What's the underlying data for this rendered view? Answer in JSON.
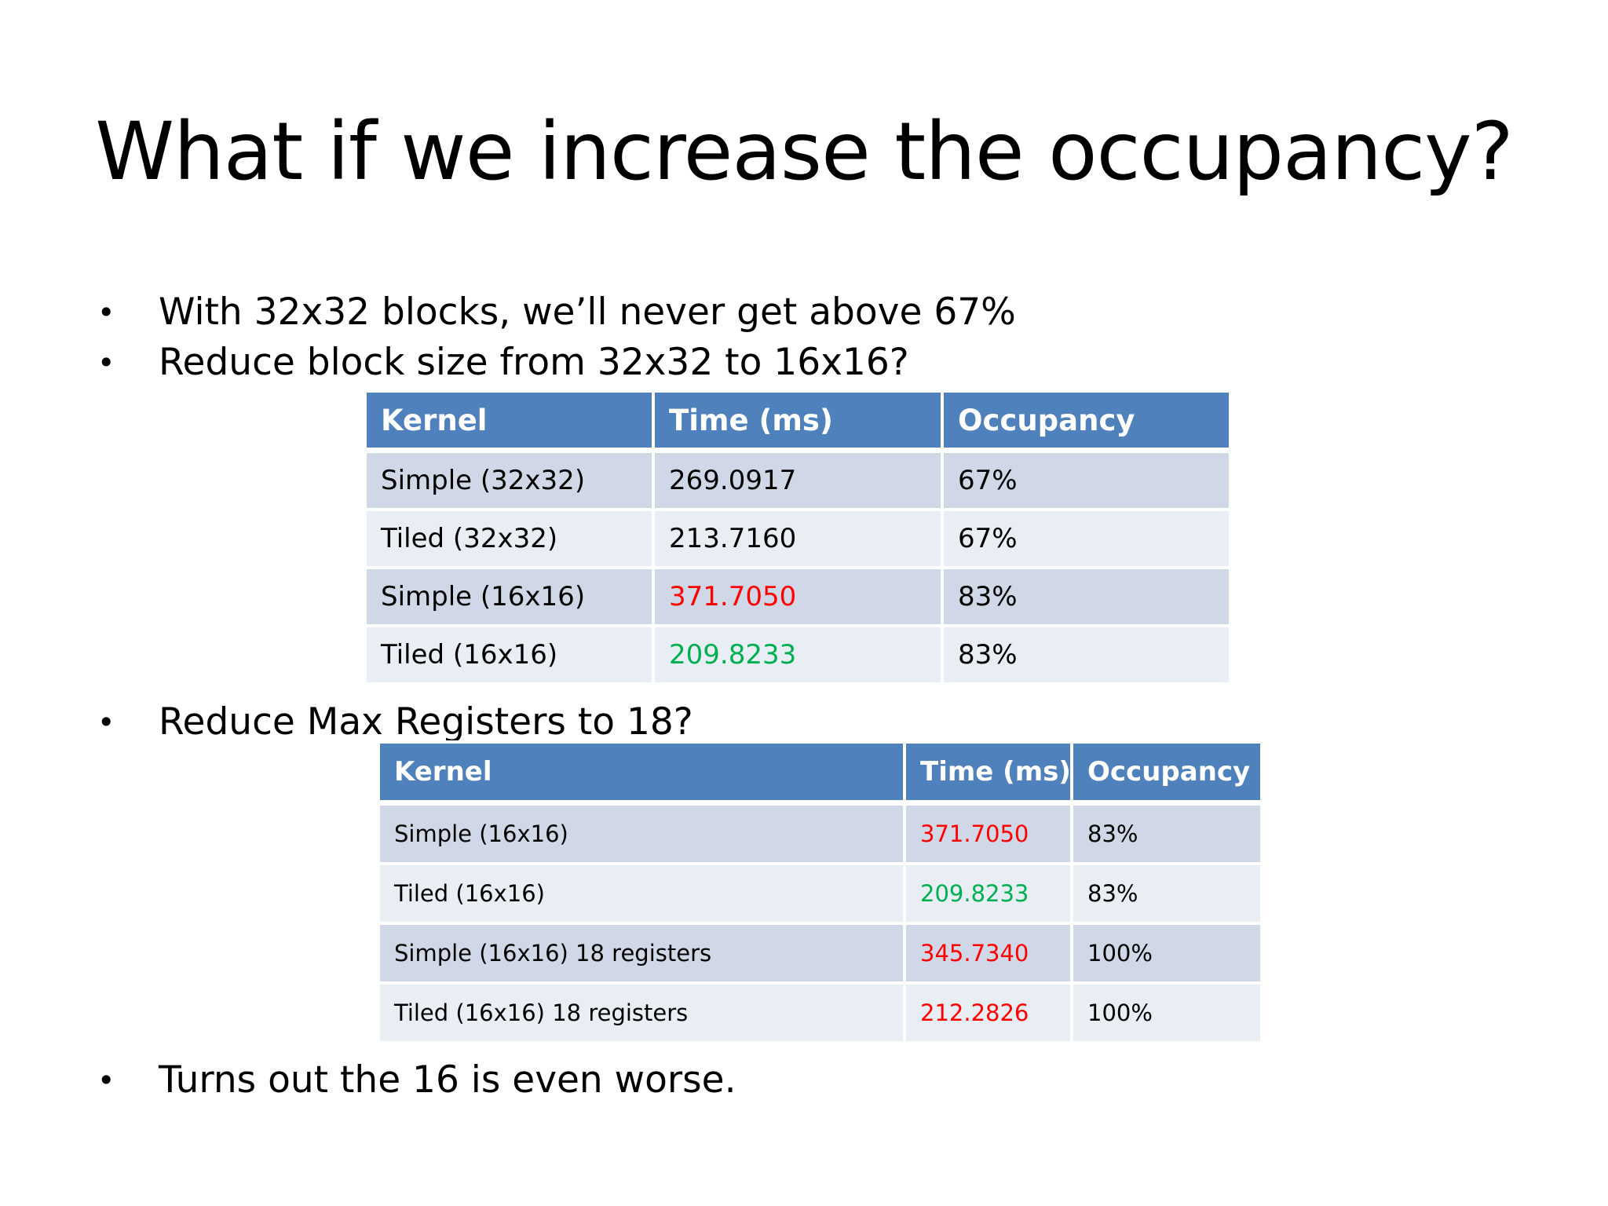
{
  "slide": {
    "title": "What if we increase the occupancy?",
    "bullets": [
      "With 32x32 blocks, we’ll never get above 67%",
      "Reduce block size from 32x32 to 16x16?",
      "Reduce Max Registers to 18?",
      "Turns out the 16 is even worse."
    ],
    "bullet_symbol": "•"
  },
  "colors": {
    "header_bg": "#4f81bd",
    "row_odd_bg": "#d0d8e8",
    "row_even_bg": "#e9edf4",
    "worse_value": "#ff0000",
    "better_value": "#00b050"
  },
  "table1": {
    "headers": [
      "Kernel",
      "Time (ms)",
      "Occupancy"
    ],
    "rows": [
      {
        "kernel": "Simple (32x32)",
        "time": "269.0917",
        "occupancy": "67%",
        "highlight": ""
      },
      {
        "kernel": "Tiled (32x32)",
        "time": "213.7160",
        "occupancy": "67%",
        "highlight": ""
      },
      {
        "kernel": "Simple (16x16)",
        "time": "371.7050",
        "occupancy": "83%",
        "highlight": "red"
      },
      {
        "kernel": "Tiled (16x16)",
        "time": "209.8233",
        "occupancy": "83%",
        "highlight": "green"
      }
    ]
  },
  "table2": {
    "headers": [
      "Kernel",
      "Time (ms)",
      "Occupancy"
    ],
    "rows": [
      {
        "kernel": "Simple (16x16)",
        "time": "371.7050",
        "occupancy": "83%",
        "highlight": "red"
      },
      {
        "kernel": "Tiled (16x16)",
        "time": "209.8233",
        "occupancy": "83%",
        "highlight": "green"
      },
      {
        "kernel": "Simple (16x16) 18 registers",
        "time": "345.7340",
        "occupancy": "100%",
        "highlight": "red"
      },
      {
        "kernel": "Tiled (16x16) 18 registers",
        "time": "212.2826",
        "occupancy": "100%",
        "highlight": "red"
      }
    ]
  }
}
